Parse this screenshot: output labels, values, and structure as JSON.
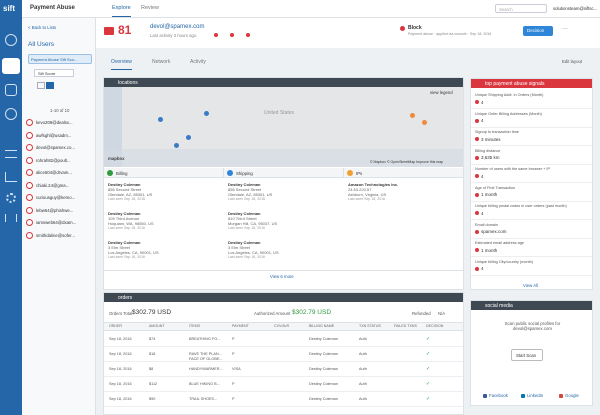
{
  "app": {
    "logo": "sift",
    "title": "Payment Abuse",
    "tabs": [
      "Explore",
      "Review"
    ],
    "search": "Search",
    "account": "solutionsteam@siftsc..."
  },
  "list": {
    "back": "< Back to Lists",
    "title": "All Users",
    "filter": "Payment Abuse Sift Sco...",
    "sort": "Sift Score",
    "range": "1-10 of 10",
    "users": [
      "kevo209@dealsx...",
      "awfsghl@usadm...",
      "devol@spamex.co...",
      "rohrah82@poult...",
      "alice604@drvam...",
      "chiaki.24@gma...",
      "curiousguy@kemo...",
      "lebw64@phishwe...",
      "iamsweb64@dxam...",
      "smithdaline@sofer..."
    ]
  },
  "user": {
    "score": "81",
    "email": "devol@spamex.com",
    "activity": "Last activity 3 hours ago",
    "status": "Block",
    "status_detail": "Payment abuse · applied via console · Sep 18, 2016",
    "decision": "Decision",
    "more": "···"
  },
  "tabs": [
    "Overview",
    "Network",
    "Activity"
  ],
  "edit_layout": "Edit layout",
  "locations": {
    "title": "locations",
    "legend": "view legend",
    "country": "United States",
    "attribution": "© Mapbox © OpenStreetMap Improve this map",
    "mapbox": "mapbox",
    "columns": [
      "Billing",
      "Shipping",
      "IPs"
    ],
    "addresses": [
      [
        [
          "Destiny Coleman",
          "856 Second Street",
          "Glendale, AZ, 85301, US",
          "Last seen Sep 18, 2016"
        ],
        [
          "Destiny Coleman",
          "109 Third Avenue",
          "Hoquiam, WA, 98550, US",
          "Last seen Sep 18, 2016"
        ],
        [
          "Destiny Coleman",
          "3 Elm Street",
          "Los Angeles, CA, 90001, US",
          "Last seen Sep 18, 2016"
        ]
      ],
      [
        [
          "Destiny Coleman",
          "856 Second Street",
          "Glendale, AZ, 85301, US",
          "Last seen Sep 18, 2016"
        ],
        [
          "Destiny Coleman",
          "810 Third Street",
          "Morgan Hill, CA, 95037, US",
          "Last seen Sep 18, 2016"
        ],
        [
          "Destiny Coleman",
          "3 Elm Street",
          "Los Angeles, CA, 90001, US",
          "Last seen Sep 18, 2016"
        ]
      ],
      [
        [
          "Amazon Technologies Inc.",
          "24.63.220.57",
          "Ashburn, Virginia, US",
          "Last seen Sep 18, 2016"
        ]
      ]
    ],
    "more": "View 6 more"
  },
  "orders": {
    "title": "orders",
    "total_label": "Orders Total",
    "total": "$302.79 USD",
    "auth_label": "Authorized Amount",
    "auth": "$302.79 USD",
    "refund_label": "Refunded",
    "refund": "N/A",
    "headers": [
      "ORDER",
      "AMOUNT",
      "ITEMS",
      "PAYMENT",
      "CVV/AVS",
      "BILLING NAME",
      "TXN STATUS",
      "FAILED TXNS",
      "DECISION"
    ],
    "rows": [
      [
        "Sep 18, 2016",
        "$74",
        "BREATHING FO...",
        "P",
        "",
        "Destiny Coleman",
        "Auth",
        "",
        "✓"
      ],
      [
        "Sep 18, 2016",
        "$18",
        "RAVE THE PLAN... FACE OF GLOBE...",
        "P",
        "",
        "Destiny Coleman",
        "Auth",
        "",
        "✓"
      ],
      [
        "Sep 18, 2016",
        "$8",
        "HANDYWARMER...",
        "VISA",
        "",
        "Destiny Coleman",
        "Auth",
        "",
        "✓"
      ],
      [
        "Sep 18, 2016",
        "$112",
        "BLUE HIKING B...",
        "P",
        "",
        "Destiny Coleman",
        "Auth",
        "",
        "✓"
      ],
      [
        "Sep 18, 2016",
        "$90",
        "TRAIL SHOES...",
        "P",
        "",
        "Destiny Coleman",
        "Auth",
        "",
        "✓"
      ]
    ]
  },
  "signals": {
    "title": "top payment abuse signals",
    "view_all": "View All",
    "items": [
      [
        "Unique Shipping Addr. in Orders (Month)",
        "4"
      ],
      [
        "Unique Order Billing Addresses (Month)",
        "4"
      ],
      [
        "Signup to transaction time",
        "3 minutes"
      ],
      [
        "Billing distance",
        "3,635 km"
      ],
      [
        "Number of users with the same browser + IP",
        "4"
      ],
      [
        "Age of First Transaction",
        "1 month"
      ],
      [
        "Unique billing postal codes in user orders (past month)",
        "4"
      ],
      [
        "Email domain",
        "spamex.com"
      ],
      [
        "Estimated email address age",
        "1 month"
      ],
      [
        "Unique billing City/country (month)",
        "4"
      ]
    ]
  },
  "social": {
    "title": "social media",
    "text": "Scan public social profiles for devol@spamex.com",
    "button": "Start Scan",
    "links": [
      "Facebook",
      "LinkedIn",
      "Google"
    ]
  }
}
